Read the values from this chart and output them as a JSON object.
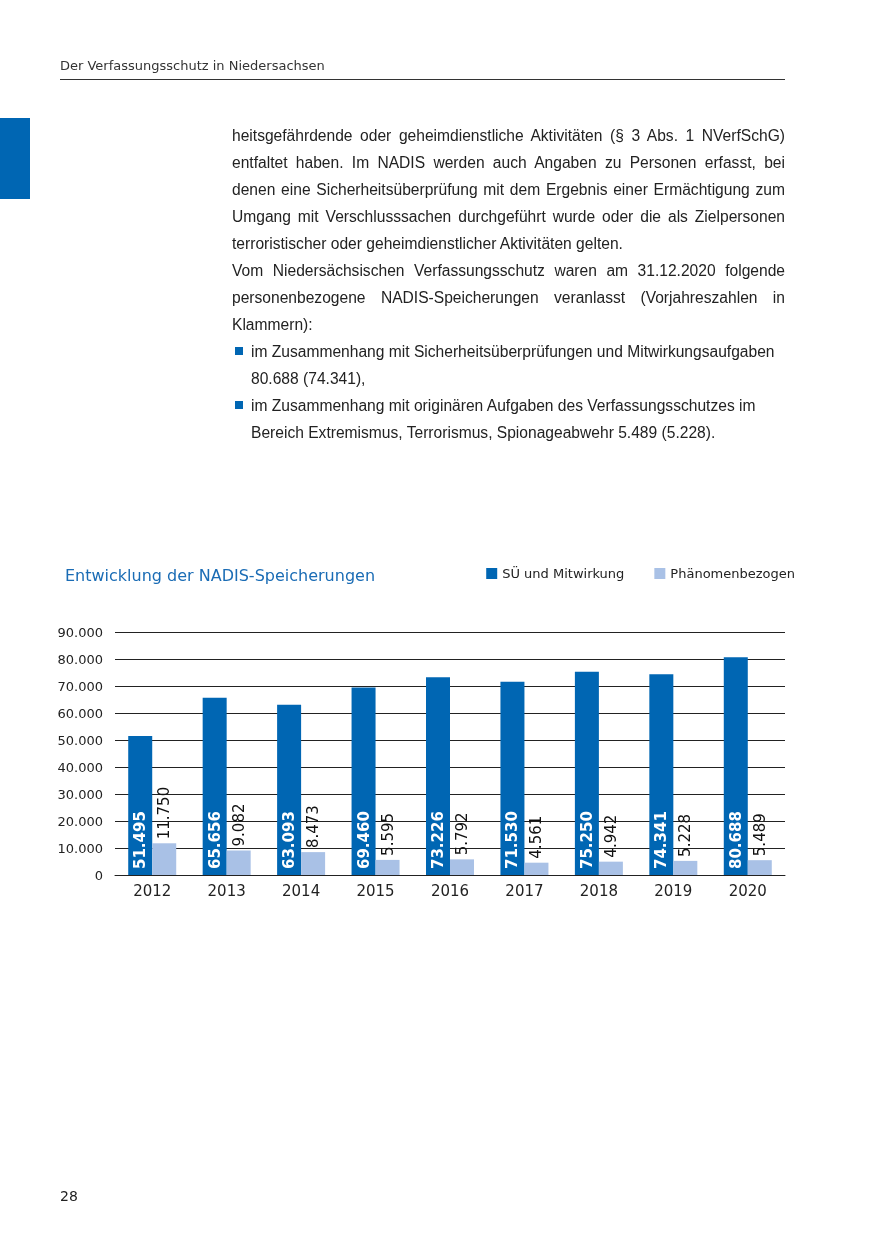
{
  "chart_data": {
    "type": "bar",
    "title": "Entwicklung der NADIS-Speicherungen",
    "categories": [
      "2012",
      "2013",
      "2014",
      "2015",
      "2016",
      "2017",
      "2018",
      "2019",
      "2020"
    ],
    "series": [
      {
        "name": "SÜ und Mitwirkung",
        "color": "#0066b3",
        "values": [
          51495,
          65656,
          63093,
          69460,
          73226,
          71530,
          75250,
          74341,
          80688
        ],
        "value_labels": [
          "51.495",
          "65.656",
          "63.093",
          "69.460",
          "73.226",
          "71.530",
          "75.250",
          "74.341",
          "80.688"
        ]
      },
      {
        "name": "Phänomenbezogen",
        "color": "#a9c1e6",
        "values": [
          11750,
          9082,
          8473,
          5595,
          5792,
          4561,
          4942,
          5228,
          5489
        ],
        "value_labels": [
          "11.750",
          "9.082",
          "8.473",
          "5.595",
          "5.792",
          "4.561",
          "4.942",
          "5.228",
          "5.489"
        ]
      }
    ],
    "ylim": [
      0,
      90000
    ],
    "yticks": [
      0,
      {
        "value": 10000,
        "label": "10.000"
      },
      {
        "value": 20000,
        "label": "20.000"
      },
      {
        "value": 30000,
        "label": "30.000"
      },
      {
        "value": 40000,
        "label": "40.000"
      },
      {
        "value": 50000,
        "label": "50.000"
      },
      {
        "value": 60000,
        "label": "60.000"
      },
      {
        "value": 70000,
        "label": "70.000"
      },
      {
        "value": 80000,
        "label": "80.000"
      },
      {
        "value": 90000,
        "label": "90.000"
      }
    ],
    "grid": "y",
    "legend": "top right",
    "annotations": [
      "Der Verfassungsschutz in Niedersachsen",
      "heitsgefährdende oder geheimdienstliche Aktivitäten (§ 3 Abs. 1 NVerfSchG) entfaltet haben. Im NADIS werden auch Angaben zu Personen erfasst, bei denen eine Sicherheitsüberprüfung mit dem Ergebnis einer Ermächtigung zum Umgang mit Verschlusssachen durchgeführt wurde oder die als Zielpersonen terroristischer oder geheimdienstlicher Aktivitäten gelten.",
      "Vom Niedersächsischen Verfassungsschutz waren am 31.12.2020 folgende personenbezogene NADIS-Speicherungen veranlasst (Vorjahreszahlen in Klammern):",
      "im Zusammenhang mit Sicherheitsüberprüfungen und Mitwirkungsaufgaben 80.688 (74.341),",
      "im Zusammenhang mit originären Aufgaben des Verfassungsschutzes im Bereich Extremismus, Terrorismus, Spionageabwehr 5.489 (5.228).",
      "28"
    ]
  }
}
